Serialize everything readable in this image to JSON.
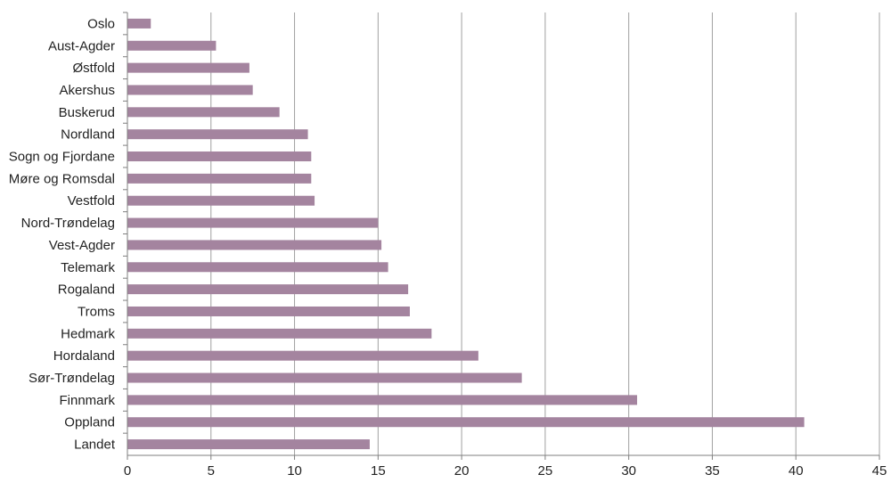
{
  "chart_data": {
    "type": "bar",
    "orientation": "horizontal",
    "title": "",
    "xlabel": "",
    "ylabel": "",
    "categories": [
      "Oslo",
      "Aust-Agder",
      "Østfold",
      "Akershus",
      "Buskerud",
      "Nordland",
      "Sogn og Fjordane",
      "Møre og Romsdal",
      "Vestfold",
      "Nord-Trøndelag",
      "Vest-Agder",
      "Telemark",
      "Rogaland",
      "Troms",
      "Hedmark",
      "Hordaland",
      "Sør-Trøndelag",
      "Finnmark",
      "Oppland",
      "Landet"
    ],
    "values": [
      1.4,
      5.3,
      7.3,
      7.5,
      9.1,
      10.8,
      11.0,
      11.0,
      11.2,
      15.0,
      15.2,
      15.6,
      16.8,
      16.9,
      18.2,
      21.0,
      23.6,
      30.5,
      40.5,
      14.5
    ],
    "xlim": [
      0,
      45
    ],
    "xticks": [
      0,
      5,
      10,
      15,
      20,
      25,
      30,
      35,
      40,
      45
    ],
    "grid": "vertical",
    "bar_color": "#a4849f",
    "grid_color": "#a0a0a0",
    "axis_color": "#7f7f7f"
  }
}
